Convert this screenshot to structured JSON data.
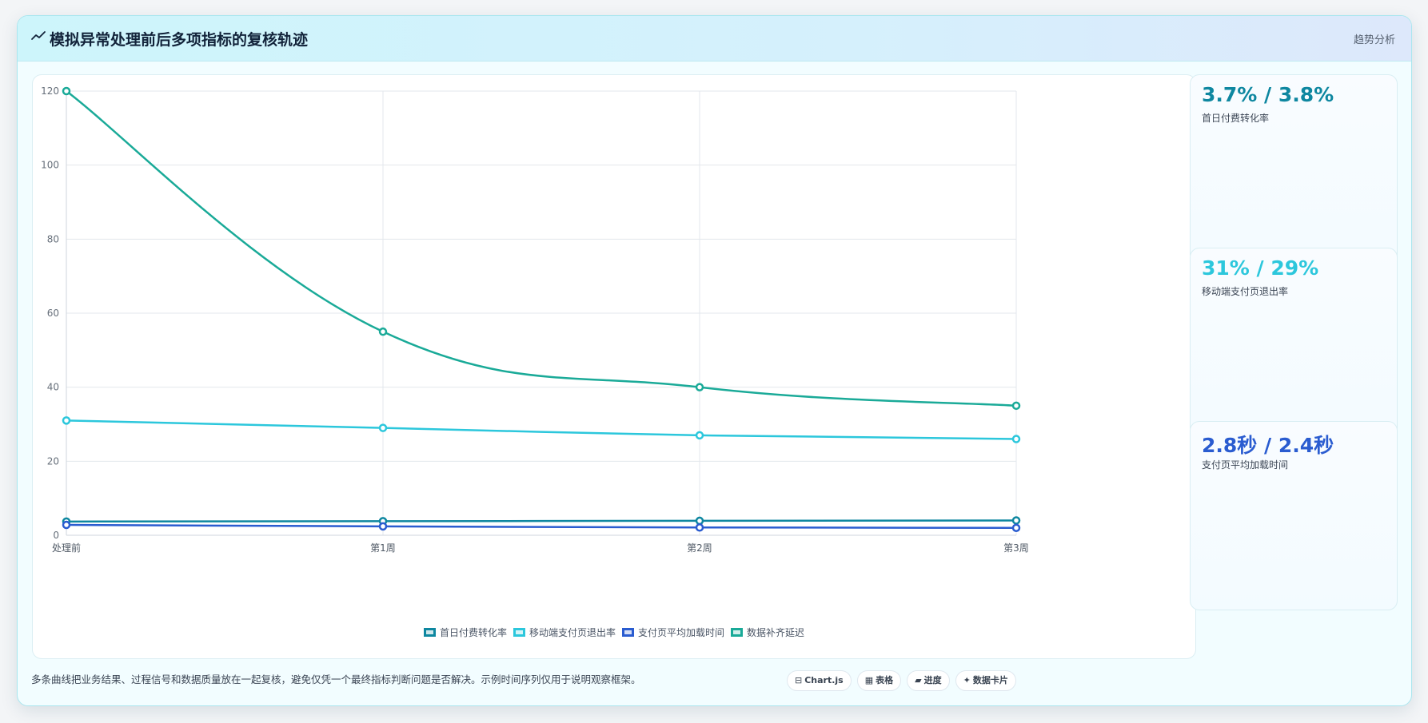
{
  "header": {
    "title": "模拟异常处理前后多项指标的复核轨迹",
    "title_icon": "trend-line-icon",
    "tag": "趋势分析"
  },
  "stats": [
    {
      "value": "3.7% / 3.8%",
      "label": "首日付费转化率",
      "color": "#0e87a0"
    },
    {
      "value": "31% / 29%",
      "label": "移动端支付页退出率",
      "color": "#2cc7dc"
    },
    {
      "value": "2.8秒 / 2.4秒",
      "label": "支付页平均加载时间",
      "color": "#2a5cd0"
    }
  ],
  "footnote": "多条曲线把业务结果、过程信号和数据质量放在一起复核，避免仅凭一个最终指标判断问题是否解决。示例时间序列仅用于说明观察框架。",
  "chips": [
    {
      "icon": "⊟",
      "icon_name": "chartjs-icon",
      "label": "Chart.js"
    },
    {
      "icon": "▦",
      "icon_name": "table-icon",
      "label": "表格"
    },
    {
      "icon": "▰",
      "icon_name": "progress-icon",
      "label": "进度"
    },
    {
      "icon": "✦",
      "icon_name": "card-icon",
      "label": "数据卡片"
    }
  ],
  "chart_data": {
    "type": "line",
    "categories": [
      "处理前",
      "第1周",
      "第2周",
      "第3周"
    ],
    "ylim": [
      0,
      120
    ],
    "yticks": [
      0,
      20,
      40,
      60,
      80,
      100,
      120
    ],
    "grid": true,
    "legend_position": "bottom",
    "series": [
      {
        "name": "首日付费转化率",
        "values": [
          3.7,
          3.8,
          3.9,
          4.0
        ],
        "color": "#0e87a0"
      },
      {
        "name": "移动端支付页退出率",
        "values": [
          31,
          29,
          27,
          26
        ],
        "color": "#2cc7dc"
      },
      {
        "name": "支付页平均加载时间",
        "values": [
          2.8,
          2.4,
          2.1,
          2.0
        ],
        "color": "#2a5cd0"
      },
      {
        "name": "数据补齐延迟",
        "values": [
          120,
          55,
          40,
          35
        ],
        "color": "#1aaa98"
      }
    ]
  }
}
